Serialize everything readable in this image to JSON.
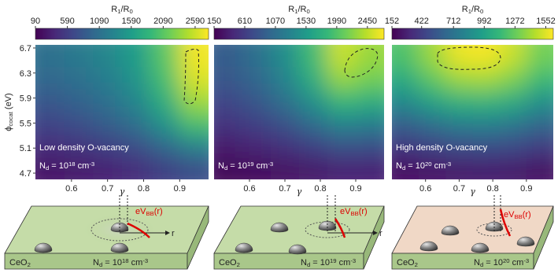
{
  "chart_data": [
    {
      "type": "heatmap",
      "colorbar_title": [
        "R",
        "1",
        "/R",
        "0"
      ],
      "zlim": [
        90,
        2800
      ],
      "zticks": [
        90,
        590,
        1090,
        1590,
        2090,
        2590
      ],
      "y_label": [
        "ϕ",
        "cocat",
        " (eV)"
      ],
      "x_label": "γ",
      "xlim": [
        0.5,
        0.98
      ],
      "ylim": [
        4.6,
        6.75
      ],
      "xticks": [
        0.6,
        0.7,
        0.8,
        0.9
      ],
      "yticks": [
        4.7,
        5.1,
        5.5,
        5.9,
        6.3,
        6.7
      ],
      "x": [
        0.54,
        0.62,
        0.7,
        0.78,
        0.86,
        0.94
      ],
      "y": [
        6.57,
        6.21,
        5.85,
        5.49,
        5.13,
        4.77
      ],
      "z": [
        [
          1100,
          1200,
          1350,
          1600,
          2100,
          2750
        ],
        [
          1000,
          1100,
          1250,
          1500,
          2000,
          2650
        ],
        [
          850,
          950,
          1100,
          1350,
          1800,
          2400
        ],
        [
          650,
          750,
          900,
          1100,
          1500,
          2000
        ],
        [
          450,
          500,
          600,
          750,
          1000,
          1300
        ],
        [
          250,
          300,
          350,
          450,
          600,
          750
        ]
      ],
      "annotation": "Low density O-vacancy",
      "density": [
        "N",
        "d",
        " = 10",
        "18",
        " cm",
        "-3"
      ]
    },
    {
      "type": "heatmap",
      "colorbar_title": [
        "R",
        "1",
        "/R",
        "0"
      ],
      "zlim": [
        150,
        2700
      ],
      "zticks": [
        150,
        610,
        1070,
        1530,
        1990,
        2450
      ],
      "x_label": "γ",
      "xlim": [
        0.5,
        0.98
      ],
      "ylim": [
        4.6,
        6.75
      ],
      "xticks": [
        0.6,
        0.7,
        0.8,
        0.9
      ],
      "x": [
        0.54,
        0.62,
        0.7,
        0.78,
        0.86,
        0.94
      ],
      "y": [
        6.57,
        6.21,
        5.85,
        5.49,
        5.13,
        4.77
      ],
      "z": [
        [
          900,
          1100,
          1400,
          1900,
          2500,
          2300
        ],
        [
          850,
          1000,
          1300,
          1750,
          2300,
          2150
        ],
        [
          700,
          850,
          1100,
          1450,
          1850,
          1750
        ],
        [
          550,
          650,
          800,
          1050,
          1300,
          1250
        ],
        [
          350,
          420,
          520,
          650,
          800,
          780
        ],
        [
          200,
          230,
          280,
          330,
          400,
          400
        ]
      ],
      "density": [
        "N",
        "d",
        " = 10",
        "19",
        " cm",
        "-3"
      ]
    },
    {
      "type": "heatmap",
      "colorbar_title": [
        "R",
        "1",
        "/R",
        "0"
      ],
      "zlim": [
        152,
        1620
      ],
      "zticks": [
        152,
        422,
        712,
        992,
        1272,
        1552
      ],
      "x_label": "γ",
      "xlim": [
        0.5,
        0.98
      ],
      "ylim": [
        4.6,
        6.75
      ],
      "xticks": [
        0.6,
        0.7,
        0.8,
        0.9
      ],
      "x": [
        0.54,
        0.62,
        0.7,
        0.78,
        0.86,
        0.94
      ],
      "y": [
        6.57,
        6.21,
        5.85,
        5.49,
        5.13,
        4.77
      ],
      "z": [
        [
          1200,
          1400,
          1580,
          1600,
          1500,
          1300
        ],
        [
          1050,
          1250,
          1400,
          1420,
          1330,
          1150
        ],
        [
          850,
          1000,
          1100,
          1120,
          1050,
          900
        ],
        [
          600,
          700,
          780,
          800,
          750,
          650
        ],
        [
          400,
          450,
          500,
          510,
          480,
          420
        ],
        [
          220,
          240,
          260,
          270,
          260,
          230
        ]
      ],
      "annotation": "High density O-vacancy",
      "density": [
        "N",
        "d",
        " = 10",
        "20",
        " cm",
        "-3"
      ]
    }
  ],
  "illustrations": [
    {
      "substrate": [
        "CeO",
        "2"
      ],
      "density": [
        "N",
        "d",
        " = 10",
        "18",
        " cm",
        "-3"
      ],
      "band_label": [
        "eV",
        "BB",
        "(r)"
      ],
      "axis_label": "r"
    },
    {
      "substrate": [
        "CeO",
        "2"
      ],
      "density": [
        "N",
        "d",
        " = 10",
        "19",
        " cm",
        "-3"
      ],
      "band_label": [
        "eV",
        "BB",
        "(r)"
      ],
      "axis_label": "r"
    },
    {
      "substrate": [
        "CeO",
        "2"
      ],
      "density": [
        "N",
        "d",
        " = 10",
        "20",
        " cm",
        "-3"
      ],
      "band_label": [
        "eV",
        "BB",
        "(r)"
      ]
    }
  ]
}
